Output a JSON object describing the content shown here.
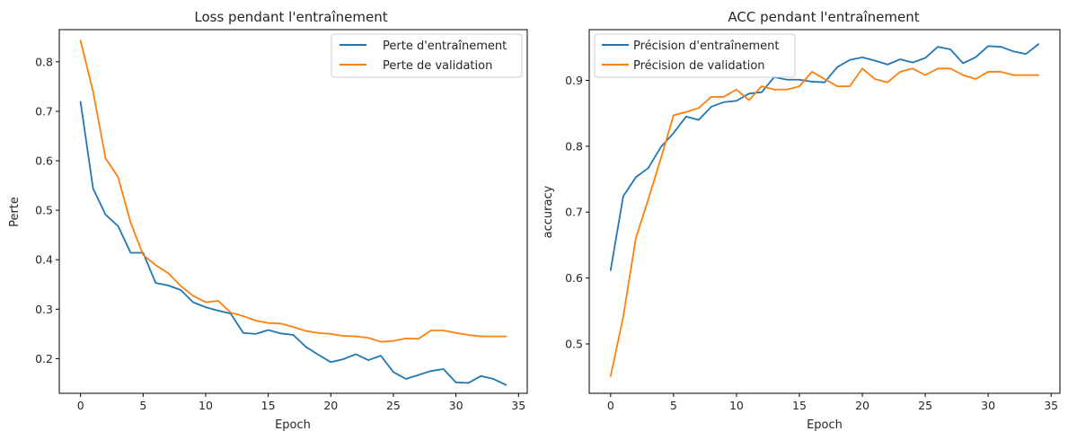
{
  "colors": {
    "train": "#1f77b4",
    "val": "#ff7f0e",
    "axes": "#000000"
  },
  "chart_data": [
    {
      "type": "line",
      "title": "Loss pendant l'entraînement",
      "xlabel": "Epoch",
      "ylabel": "Perte",
      "xlim": [
        -1.7,
        35.7
      ],
      "ylim": [
        0.13,
        0.865
      ],
      "xticks": [
        0,
        5,
        10,
        15,
        20,
        25,
        30,
        35
      ],
      "xtick_labels": [
        "0",
        "5",
        "10",
        "15",
        "20",
        "25",
        "30",
        "35"
      ],
      "yticks": [
        0.2,
        0.3,
        0.4,
        0.5,
        0.6,
        0.7,
        0.8
      ],
      "ytick_labels": [
        "0.2",
        "0.3",
        "0.4",
        "0.5",
        "0.6",
        "0.7",
        "0.8"
      ],
      "legend_position": "top-right",
      "x": [
        0,
        1,
        2,
        3,
        4,
        5,
        6,
        7,
        8,
        9,
        10,
        11,
        12,
        13,
        14,
        15,
        16,
        17,
        18,
        19,
        20,
        21,
        22,
        23,
        24,
        25,
        26,
        27,
        28,
        29,
        30,
        31,
        32,
        33,
        34
      ],
      "series": [
        {
          "name": "Perte d'entraînement",
          "color_key": "train",
          "values": [
            0.719,
            0.544,
            0.491,
            0.468,
            0.414,
            0.414,
            0.353,
            0.348,
            0.339,
            0.314,
            0.304,
            0.297,
            0.291,
            0.252,
            0.25,
            0.258,
            0.251,
            0.248,
            0.224,
            0.208,
            0.193,
            0.199,
            0.209,
            0.197,
            0.206,
            0.173,
            0.159,
            0.167,
            0.175,
            0.179,
            0.152,
            0.151,
            0.165,
            0.159,
            0.147
          ]
        },
        {
          "name": "Perte de validation",
          "color_key": "val",
          "values": [
            0.843,
            0.74,
            0.605,
            0.567,
            0.475,
            0.41,
            0.389,
            0.373,
            0.347,
            0.327,
            0.314,
            0.317,
            0.293,
            0.286,
            0.277,
            0.272,
            0.271,
            0.264,
            0.256,
            0.252,
            0.25,
            0.246,
            0.245,
            0.242,
            0.234,
            0.236,
            0.241,
            0.24,
            0.257,
            0.257,
            0.252,
            0.248,
            0.245,
            0.245,
            0.245
          ]
        }
      ]
    },
    {
      "type": "line",
      "title": "ACC pendant l'entraînement",
      "xlabel": "Epoch",
      "ylabel": "accuracy",
      "xlim": [
        -1.7,
        35.7
      ],
      "ylim": [
        0.425,
        0.977
      ],
      "xticks": [
        0,
        5,
        10,
        15,
        20,
        25,
        30,
        35
      ],
      "xtick_labels": [
        "0",
        "5",
        "10",
        "15",
        "20",
        "25",
        "30",
        "35"
      ],
      "yticks": [
        0.5,
        0.6,
        0.7,
        0.8,
        0.9
      ],
      "ytick_labels": [
        "0.5",
        "0.6",
        "0.7",
        "0.8",
        "0.9"
      ],
      "legend_position": "top-left",
      "x": [
        0,
        1,
        2,
        3,
        4,
        5,
        6,
        7,
        8,
        9,
        10,
        11,
        12,
        13,
        14,
        15,
        16,
        17,
        18,
        19,
        20,
        21,
        22,
        23,
        24,
        25,
        26,
        27,
        28,
        29,
        30,
        31,
        32,
        33,
        34
      ],
      "series": [
        {
          "name": "Précision d'entraînement",
          "color_key": "train",
          "values": [
            0.612,
            0.724,
            0.753,
            0.767,
            0.799,
            0.82,
            0.845,
            0.84,
            0.86,
            0.867,
            0.869,
            0.88,
            0.882,
            0.905,
            0.901,
            0.901,
            0.898,
            0.897,
            0.92,
            0.931,
            0.935,
            0.93,
            0.924,
            0.932,
            0.927,
            0.934,
            0.951,
            0.947,
            0.926,
            0.935,
            0.952,
            0.951,
            0.944,
            0.94,
            0.955
          ]
        },
        {
          "name": "Précision de validation",
          "color_key": "val",
          "values": [
            0.451,
            0.541,
            0.66,
            0.72,
            0.782,
            0.847,
            0.852,
            0.858,
            0.875,
            0.875,
            0.886,
            0.87,
            0.891,
            0.886,
            0.886,
            0.891,
            0.913,
            0.902,
            0.891,
            0.891,
            0.918,
            0.902,
            0.897,
            0.913,
            0.918,
            0.908,
            0.918,
            0.918,
            0.908,
            0.902,
            0.913,
            0.913,
            0.908,
            0.908,
            0.908
          ]
        }
      ]
    }
  ]
}
